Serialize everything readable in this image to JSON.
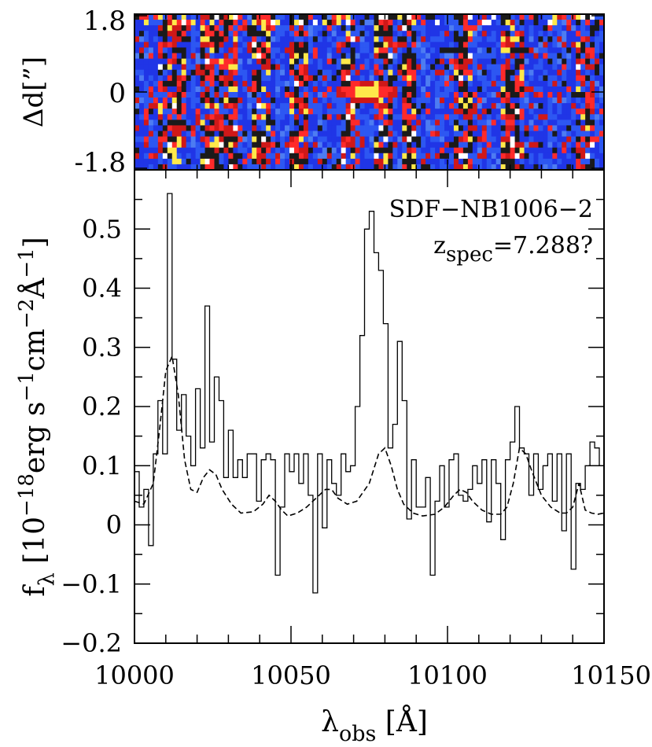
{
  "chart_data": [
    {
      "type": "heatmap",
      "panel": "2d-spectrum",
      "ylabel": "Δd[”]",
      "yticks": [
        "1.8",
        "0",
        "-1.8"
      ],
      "ylim": [
        -1.8,
        1.8
      ],
      "xlim": [
        10000,
        10150
      ],
      "colormap": [
        "#1a1a1a",
        "#2035e6",
        "#2d57f2",
        "#4d7cf2",
        "#d01818",
        "#ff2a2a",
        "#ffe94a",
        "#ffffff"
      ]
    },
    {
      "type": "line",
      "panel": "1d-spectrum",
      "xlabel_main": "λ",
      "xlabel_sub": "obs",
      "xlabel_unit": " [Å]",
      "ylabel_main": "f",
      "ylabel_sub": "λ",
      "ylabel_unit": " [10",
      "ylabel_exp1": "−18",
      "ylabel_mid1": "erg s",
      "ylabel_exp2": "−1",
      "ylabel_mid2": "cm",
      "ylabel_exp3": "−2",
      "ylabel_mid3": "Å",
      "ylabel_exp4": "−1",
      "ylabel_end": "]",
      "object_label": "SDF−NB1006−2",
      "z_label_main": "z",
      "z_label_sub": "spec",
      "z_label_value": "=7.288?",
      "xlim": [
        10000,
        10150
      ],
      "ylim": [
        -0.2,
        0.6
      ],
      "xticks": [
        "10000",
        "10050",
        "10100",
        "10150"
      ],
      "yticks": [
        "0.5",
        "0.4",
        "0.3",
        "0.2",
        "0.1",
        "0",
        "−0.1",
        "−0.2"
      ],
      "series": [
        {
          "style": "step-solid",
          "x": [
            10000,
            10001.5,
            10003,
            10004.5,
            10006,
            10007.5,
            10009,
            10010.5,
            10012,
            10013.5,
            10015,
            10016.5,
            10018,
            10019.5,
            10021,
            10022.5,
            10024,
            10025.5,
            10027,
            10028.5,
            10030,
            10031.5,
            10033,
            10034.5,
            10036,
            10037.5,
            10039,
            10040.5,
            10042,
            10043.5,
            10045,
            10046.5,
            10048,
            10049.5,
            10051,
            10052.5,
            10054,
            10055.5,
            10057,
            10058.5,
            10060,
            10061.5,
            10063,
            10064.5,
            10066,
            10067.5,
            10069,
            10070.5,
            10072,
            10073.5,
            10075,
            10076.5,
            10078,
            10079.5,
            10081,
            10082.5,
            10084,
            10085.5,
            10087,
            10088.5,
            10090,
            10091.5,
            10093,
            10094.5,
            10096,
            10097.5,
            10099,
            10100.5,
            10102,
            10103.5,
            10105,
            10106.5,
            10108,
            10109.5,
            10111,
            10112.5,
            10114,
            10115.5,
            10117,
            10118.5,
            10120,
            10121.5,
            10123,
            10124.5,
            10126,
            10127.5,
            10129,
            10130.5,
            10132,
            10133.5,
            10135,
            10136.5,
            10138,
            10139.5,
            10141,
            10142.5,
            10144,
            10145.5,
            10147,
            10148.5
          ],
          "y": [
            0.09,
            0.03,
            0.06,
            -0.035,
            0.12,
            0.21,
            0.12,
            0.56,
            0.28,
            0.16,
            0.22,
            0.15,
            0.1,
            0.23,
            0.13,
            0.37,
            0.14,
            0.25,
            0.21,
            0.08,
            0.16,
            0.08,
            0.11,
            0.08,
            0.12,
            0.12,
            0.04,
            0.11,
            0.12,
            0.11,
            -0.085,
            0.03,
            0.12,
            0.09,
            0.12,
            0.07,
            0.12,
            0.05,
            -0.115,
            0.12,
            -0.005,
            0.11,
            0.07,
            0.05,
            0.12,
            0.09,
            0.1,
            0.2,
            0.32,
            0.5,
            0.53,
            0.46,
            0.43,
            0.34,
            0.13,
            0.17,
            0.31,
            0.21,
            0.01,
            0.11,
            0.03,
            0.03,
            0.08,
            -0.085,
            0.04,
            0.1,
            0.03,
            0.11,
            0.12,
            0.05,
            0.04,
            0.06,
            0.1,
            0.07,
            0.11,
            0.005,
            0.11,
            0.07,
            -0.025,
            0.11,
            0.14,
            0.2,
            0.13,
            0.12,
            0.05,
            0.12,
            0.06,
            0.1,
            0.12,
            0.04,
            0.12,
            -0.01,
            0.12,
            -0.075,
            0.07,
            0.06,
            0.1,
            0.14,
            0.13,
            0.1
          ]
        },
        {
          "style": "dashed",
          "x": [
            10000,
            10003,
            10006,
            10008,
            10010,
            10012,
            10014,
            10016,
            10018,
            10020,
            10022,
            10024,
            10026,
            10028,
            10031,
            10034,
            10038,
            10041,
            10043,
            10045,
            10047,
            10049,
            10052,
            10055,
            10058,
            10061,
            10063,
            10065,
            10068,
            10071,
            10075,
            10078,
            10080,
            10082,
            10084,
            10086,
            10089,
            10092,
            10096,
            10099,
            10102,
            10104,
            10106,
            10108,
            10111,
            10114,
            10117,
            10119,
            10121,
            10123,
            10125,
            10127,
            10130,
            10133,
            10136,
            10138,
            10140,
            10142,
            10144,
            10146,
            10148,
            10150
          ],
          "y": [
            0.04,
            0.035,
            0.07,
            0.16,
            0.26,
            0.285,
            0.22,
            0.11,
            0.06,
            0.055,
            0.08,
            0.093,
            0.085,
            0.06,
            0.035,
            0.02,
            0.022,
            0.035,
            0.05,
            0.04,
            0.025,
            0.015,
            0.02,
            0.03,
            0.045,
            0.06,
            0.06,
            0.045,
            0.035,
            0.04,
            0.07,
            0.12,
            0.13,
            0.1,
            0.06,
            0.035,
            0.02,
            0.015,
            0.018,
            0.03,
            0.05,
            0.06,
            0.055,
            0.04,
            0.025,
            0.018,
            0.018,
            0.03,
            0.07,
            0.13,
            0.12,
            0.09,
            0.05,
            0.03,
            0.02,
            0.02,
            0.03,
            0.07,
            0.025,
            0.02,
            0.018,
            0.02
          ]
        }
      ]
    }
  ]
}
